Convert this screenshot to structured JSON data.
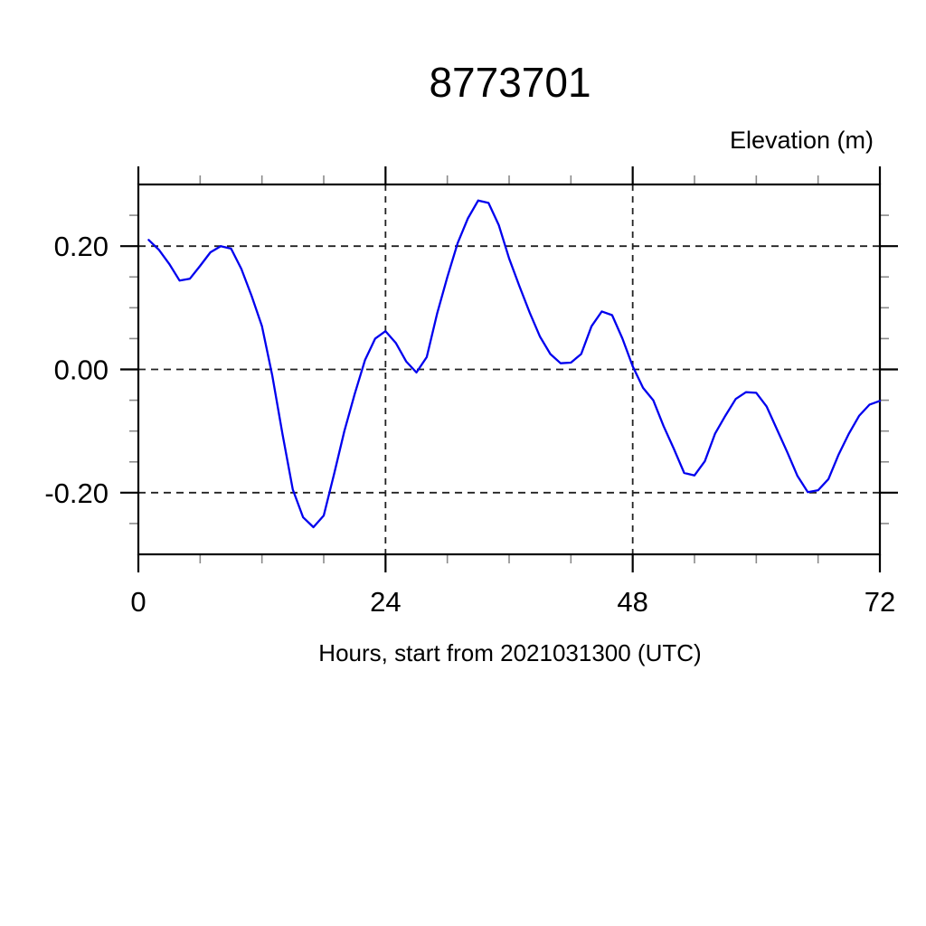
{
  "figure": {
    "background": "#ffffff"
  },
  "style": {
    "line_color": "#0000ee",
    "frame_color": "#000000",
    "grid_color": "#222222",
    "major_tick_color": "#000000",
    "minor_tick_color": "#8a8a8a",
    "text_color": "#000000"
  },
  "chart_data": {
    "type": "line",
    "title": "8773701",
    "corner_label": "Elevation (m)",
    "xlabel": "Hours, start from 2021031300 (UTC)",
    "ylabel": "Elevation (m)",
    "xlim": [
      0,
      72
    ],
    "ylim": [
      -0.3,
      0.3
    ],
    "grid": true,
    "grid_x": [
      24,
      48
    ],
    "grid_y": [
      0.2,
      0.0,
      -0.2
    ],
    "x_major_ticks": [
      0,
      24,
      48,
      72
    ],
    "x_major_labels": [
      "0",
      "24",
      "48",
      "72"
    ],
    "x_minor_step": 6,
    "y_major_ticks": [
      0.2,
      0.0,
      -0.2
    ],
    "y_major_labels": [
      "0.20",
      "0.00",
      "-0.20"
    ],
    "y_minor_step": 0.05,
    "series": [
      {
        "name": "elevation",
        "color": "#0000ee",
        "hours": [
          1,
          2,
          3,
          4,
          5,
          6,
          7,
          8,
          9,
          10,
          11,
          12,
          13,
          14,
          15,
          16,
          17,
          18,
          19,
          20,
          21,
          22,
          23,
          24,
          25,
          26,
          27,
          28,
          29,
          30,
          31,
          32,
          33,
          34,
          35,
          36,
          37,
          38,
          39,
          40,
          41,
          42,
          43,
          44,
          45,
          46,
          47,
          48,
          49,
          50,
          51,
          52,
          53,
          54,
          55,
          56,
          57,
          58,
          59,
          60,
          61,
          62,
          63,
          64,
          65,
          66,
          67,
          68,
          69,
          70,
          71,
          72
        ],
        "values": [
          0.21,
          0.194,
          0.171,
          0.144,
          0.147,
          0.168,
          0.19,
          0.2,
          0.196,
          0.163,
          0.119,
          0.07,
          -0.01,
          -0.105,
          -0.195,
          -0.24,
          -0.256,
          -0.237,
          -0.17,
          -0.1,
          -0.04,
          0.015,
          0.05,
          0.062,
          0.043,
          0.013,
          -0.005,
          0.02,
          0.09,
          0.15,
          0.205,
          0.245,
          0.274,
          0.27,
          0.234,
          0.18,
          0.135,
          0.092,
          0.053,
          0.025,
          0.01,
          0.011,
          0.025,
          0.07,
          0.094,
          0.088,
          0.05,
          0.005,
          -0.03,
          -0.05,
          -0.092,
          -0.129,
          -0.168,
          -0.172,
          -0.149,
          -0.104,
          -0.075,
          -0.048,
          -0.037,
          -0.038,
          -0.06,
          -0.097,
          -0.134,
          -0.173,
          -0.199,
          -0.196,
          -0.178,
          -0.138,
          -0.104,
          -0.075,
          -0.057,
          -0.051
        ]
      }
    ]
  }
}
